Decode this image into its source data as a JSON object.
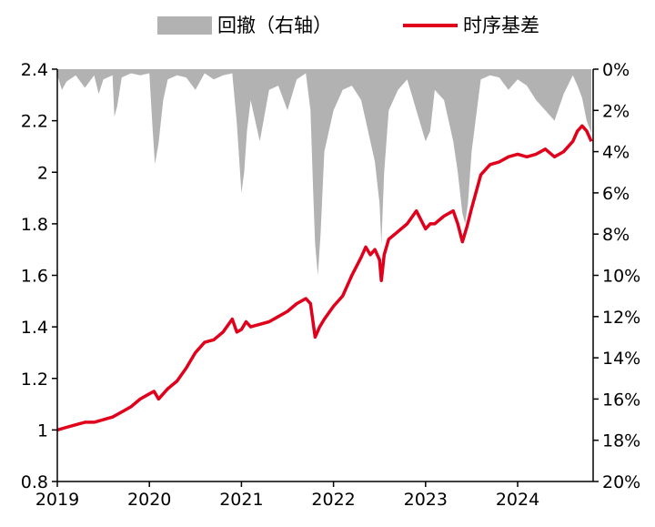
{
  "chart_data": {
    "type": "line",
    "legend": [
      {
        "key": "drawdown",
        "label": "回撤（右轴）",
        "color": "#b2b2b2",
        "kind": "area"
      },
      {
        "key": "basis",
        "label": "时序基差",
        "color": "#e0001b",
        "kind": "line"
      }
    ],
    "legend_position": "top-center",
    "x_axis": {
      "min": 2019.0,
      "max": 2024.82,
      "ticks": [
        2019,
        2020,
        2021,
        2022,
        2023,
        2024
      ],
      "tick_labels": [
        "2019",
        "2020",
        "2021",
        "2022",
        "2023",
        "2024"
      ]
    },
    "y_left": {
      "min": 0.8,
      "max": 2.4,
      "ticks": [
        0.8,
        1.0,
        1.2,
        1.4,
        1.6,
        1.8,
        2.0,
        2.2,
        2.4
      ],
      "tick_labels": [
        "0.8",
        "1",
        "1.2",
        "1.4",
        "1.6",
        "1.8",
        "2",
        "2.2",
        "2.4"
      ]
    },
    "y_right": {
      "min": 0,
      "max": 20,
      "inverted": true,
      "unit": "%",
      "ticks": [
        0,
        2,
        4,
        6,
        8,
        10,
        12,
        14,
        16,
        18,
        20
      ],
      "tick_labels": [
        "0%",
        "2%",
        "4%",
        "6%",
        "8%",
        "10%",
        "12%",
        "14%",
        "16%",
        "18%",
        "20%"
      ]
    },
    "grid": false,
    "series": [
      {
        "name": "时序基差",
        "axis": "left",
        "x": [
          2019.0,
          2019.1,
          2019.2,
          2019.3,
          2019.4,
          2019.5,
          2019.6,
          2019.7,
          2019.8,
          2019.9,
          2020.0,
          2020.05,
          2020.1,
          2020.2,
          2020.3,
          2020.4,
          2020.5,
          2020.6,
          2020.7,
          2020.8,
          2020.9,
          2020.95,
          2021.0,
          2021.05,
          2021.1,
          2021.2,
          2021.3,
          2021.4,
          2021.5,
          2021.6,
          2021.7,
          2021.75,
          2021.8,
          2021.85,
          2021.9,
          2022.0,
          2022.1,
          2022.2,
          2022.3,
          2022.35,
          2022.4,
          2022.45,
          2022.5,
          2022.52,
          2022.55,
          2022.6,
          2022.7,
          2022.8,
          2022.9,
          2023.0,
          2023.05,
          2023.1,
          2023.2,
          2023.3,
          2023.35,
          2023.4,
          2023.45,
          2023.5,
          2023.6,
          2023.7,
          2023.8,
          2023.9,
          2024.0,
          2024.1,
          2024.2,
          2024.3,
          2024.4,
          2024.5,
          2024.6,
          2024.65,
          2024.7,
          2024.75,
          2024.8
        ],
        "y": [
          1.0,
          1.01,
          1.02,
          1.03,
          1.03,
          1.04,
          1.05,
          1.07,
          1.09,
          1.12,
          1.14,
          1.15,
          1.12,
          1.16,
          1.19,
          1.24,
          1.3,
          1.34,
          1.35,
          1.38,
          1.43,
          1.38,
          1.39,
          1.42,
          1.4,
          1.41,
          1.42,
          1.44,
          1.46,
          1.49,
          1.51,
          1.49,
          1.36,
          1.4,
          1.43,
          1.48,
          1.52,
          1.6,
          1.67,
          1.71,
          1.68,
          1.7,
          1.66,
          1.58,
          1.68,
          1.74,
          1.77,
          1.8,
          1.85,
          1.78,
          1.8,
          1.8,
          1.83,
          1.85,
          1.8,
          1.73,
          1.79,
          1.86,
          1.99,
          2.03,
          2.04,
          2.06,
          2.07,
          2.06,
          2.07,
          2.09,
          2.06,
          2.08,
          2.12,
          2.16,
          2.18,
          2.16,
          2.12
        ]
      },
      {
        "name": "回撤（右轴）",
        "axis": "right",
        "x": [
          2019.0,
          2019.05,
          2019.1,
          2019.2,
          2019.3,
          2019.4,
          2019.45,
          2019.5,
          2019.6,
          2019.62,
          2019.65,
          2019.7,
          2019.8,
          2019.9,
          2020.0,
          2020.03,
          2020.06,
          2020.1,
          2020.15,
          2020.2,
          2020.3,
          2020.4,
          2020.5,
          2020.6,
          2020.7,
          2020.8,
          2020.9,
          2020.95,
          2021.0,
          2021.03,
          2021.06,
          2021.1,
          2021.2,
          2021.3,
          2021.4,
          2021.5,
          2021.6,
          2021.7,
          2021.75,
          2021.78,
          2021.8,
          2021.83,
          2021.86,
          2021.9,
          2022.0,
          2022.1,
          2022.2,
          2022.3,
          2022.4,
          2022.45,
          2022.5,
          2022.52,
          2022.55,
          2022.6,
          2022.7,
          2022.8,
          2022.9,
          2023.0,
          2023.05,
          2023.1,
          2023.2,
          2023.3,
          2023.35,
          2023.4,
          2023.43,
          2023.46,
          2023.5,
          2023.6,
          2023.7,
          2023.8,
          2023.9,
          2024.0,
          2024.1,
          2024.2,
          2024.3,
          2024.4,
          2024.5,
          2024.6,
          2024.65,
          2024.7,
          2024.75,
          2024.8
        ],
        "y": [
          0.3,
          1.0,
          0.6,
          0.3,
          0.9,
          0.3,
          1.2,
          0.5,
          0.3,
          2.3,
          1.8,
          0.4,
          0.2,
          0.3,
          0.2,
          2.5,
          4.6,
          3.6,
          1.5,
          0.5,
          0.3,
          0.4,
          1.0,
          0.2,
          0.5,
          0.3,
          0.2,
          2.6,
          6.0,
          5.0,
          3.0,
          1.5,
          3.5,
          1.0,
          0.8,
          2.0,
          0.5,
          0.2,
          2.0,
          6.0,
          8.5,
          10.0,
          8.0,
          4.0,
          2.0,
          1.0,
          0.8,
          1.5,
          3.5,
          4.5,
          6.5,
          8.5,
          5.0,
          2.0,
          1.0,
          0.5,
          2.0,
          3.5,
          3.0,
          1.0,
          1.5,
          3.5,
          5.0,
          7.0,
          7.5,
          6.5,
          4.0,
          0.5,
          0.3,
          0.4,
          1.0,
          0.5,
          0.8,
          1.5,
          2.0,
          2.5,
          1.2,
          0.3,
          0.8,
          1.4,
          2.5,
          3.1
        ]
      }
    ]
  }
}
